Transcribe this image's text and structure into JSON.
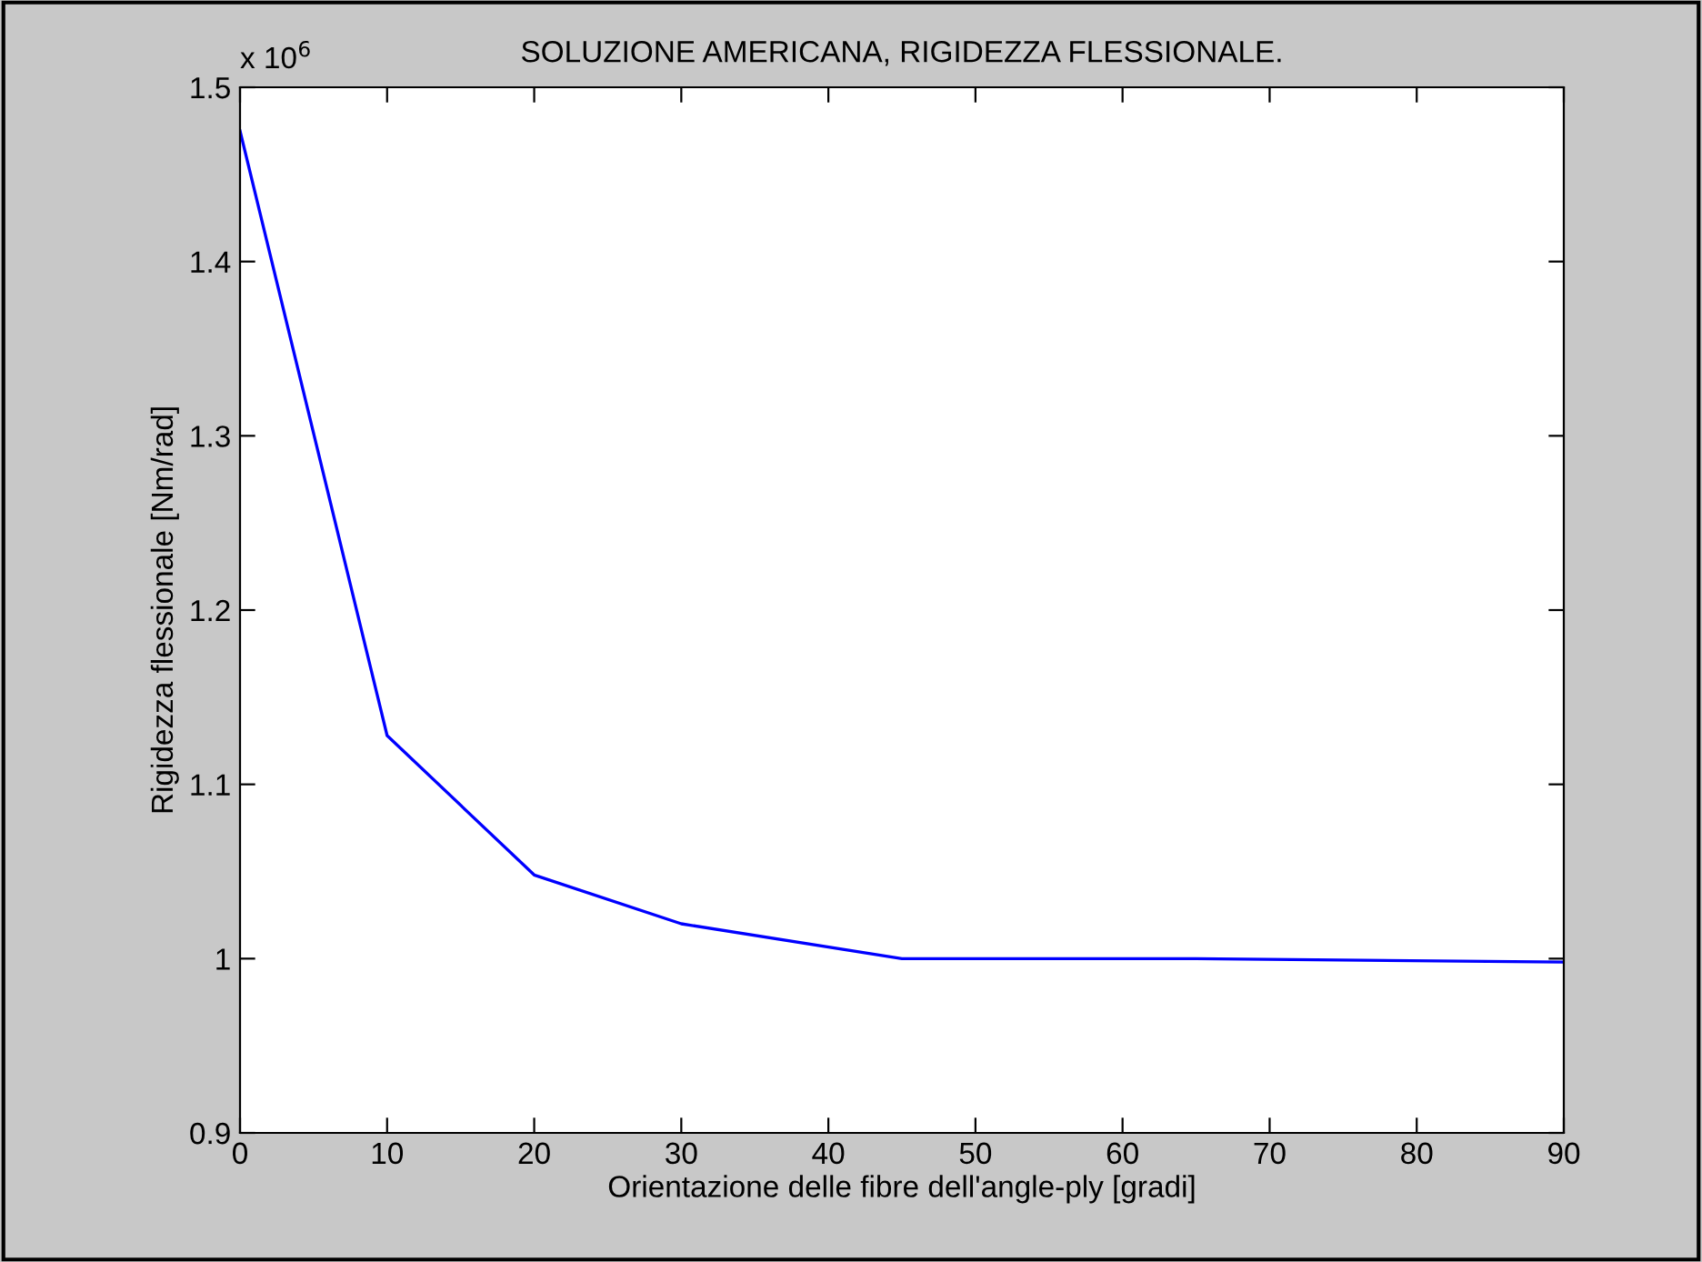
{
  "chart_data": {
    "type": "line",
    "title": "SOLUZIONE AMERICANA, RIGIDEZZA FLESSIONALE.",
    "xlabel": "Orientazione delle fibre dell'angle-ply [gradi]",
    "ylabel": "Rigidezza flessionale [Nm/rad]",
    "annotations": [
      "x 10$^{6}$"
    ],
    "x": [
      0,
      10,
      20,
      30,
      45,
      65,
      90
    ],
    "series": [
      {
        "color": "#0000ff",
        "values": [
          1.475,
          1.128,
          1.048,
          1.02,
          1.0,
          1.0,
          0.998
        ]
      }
    ],
    "xlim": [
      0,
      90
    ],
    "xticks": [
      0,
      10,
      20,
      30,
      40,
      50,
      60,
      70,
      80,
      90
    ],
    "ylim": [
      0.9,
      1.5
    ],
    "yticks": [
      0.9,
      1,
      1.1,
      1.2,
      1.3,
      1.4,
      1.5
    ],
    "grid": false,
    "legend": false,
    "marker": "none",
    "line_style": "solid"
  }
}
